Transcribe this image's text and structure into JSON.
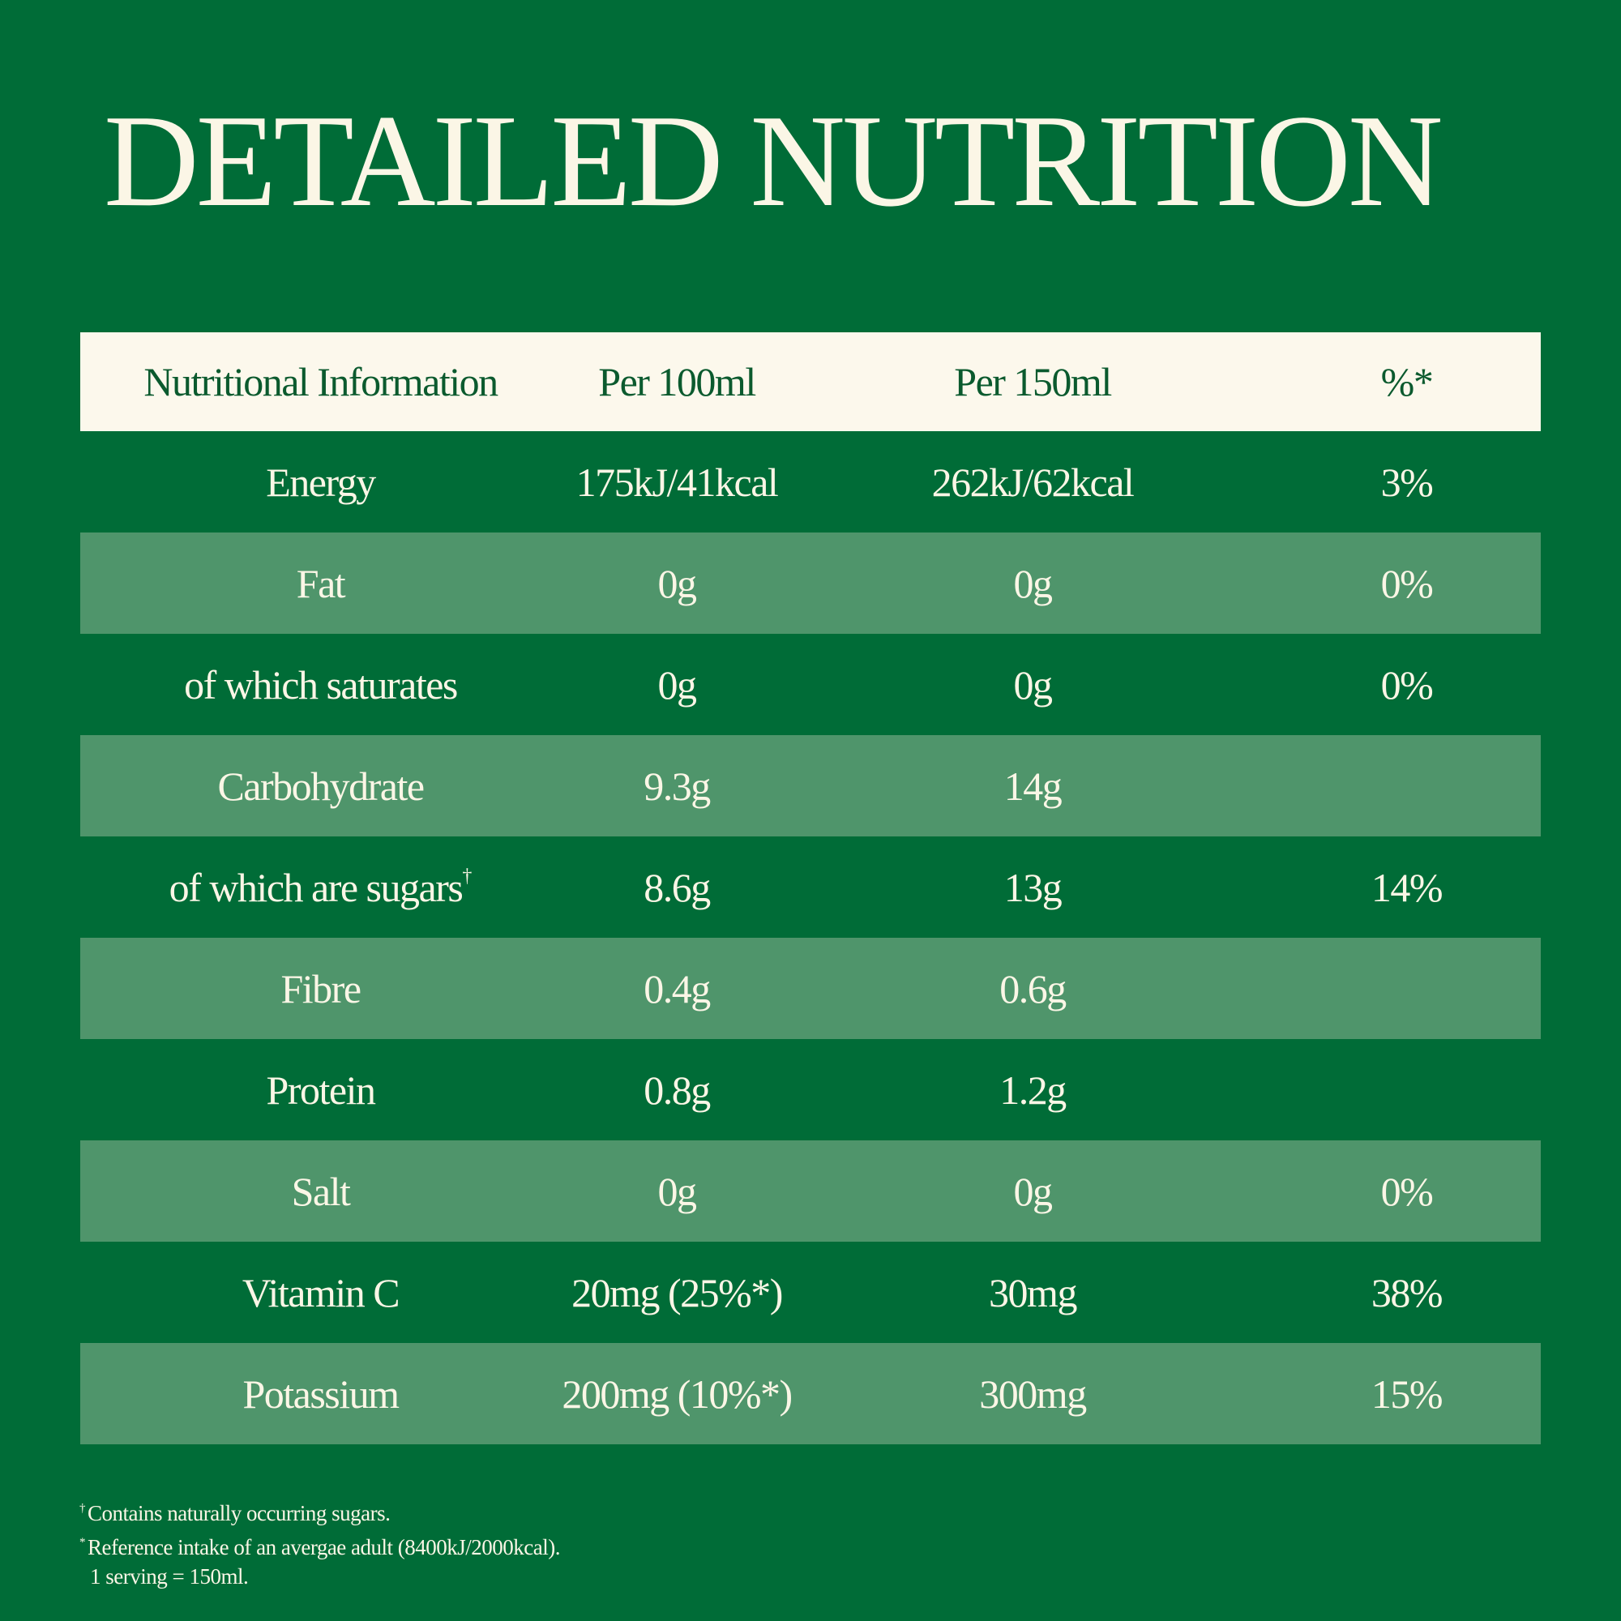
{
  "title": "DETAILED NUTRITION",
  "table": {
    "headers": [
      "Nutritional Information",
      "Per 100ml",
      "Per 150ml",
      "%*"
    ],
    "rows": [
      {
        "name": "Energy",
        "per100": "175kJ/41kcal",
        "per150": "262kJ/62kcal",
        "ri": "3%"
      },
      {
        "name": "Fat",
        "per100": "0g",
        "per150": "0g",
        "ri": "0%"
      },
      {
        "name": "of which saturates",
        "per100": "0g",
        "per150": "0g",
        "ri": "0%"
      },
      {
        "name": "Carbohydrate",
        "per100": "9.3g",
        "per150": "14g",
        "ri": ""
      },
      {
        "name": "of which are sugars",
        "name_mark": "†",
        "per100": "8.6g",
        "per150": "13g",
        "ri": "14%"
      },
      {
        "name": "Fibre",
        "per100": "0.4g",
        "per150": "0.6g",
        "ri": ""
      },
      {
        "name": "Protein",
        "per100": "0.8g",
        "per150": "1.2g",
        "ri": ""
      },
      {
        "name": "Salt",
        "per100": "0g",
        "per150": "0g",
        "ri": "0%"
      },
      {
        "name": "Vitamin C",
        "per100": "20mg (25%*)",
        "per150": "30mg",
        "ri": "38%"
      },
      {
        "name": "Potassium",
        "per100": "200mg (10%*)",
        "per150": "300mg",
        "ri": "15%"
      }
    ]
  },
  "footnotes": {
    "sugars_mark": "†",
    "sugars_text": "Contains naturally occurring sugars.",
    "ri_mark": "*",
    "ri_text": "Reference intake of an avergae adult (8400kJ/2000kcal).",
    "serving_text": "1 serving = 150ml."
  },
  "colors": {
    "background": "#006c37",
    "stripe": "#4f956b",
    "header_background": "#fcf8ec",
    "header_text": "#0b5a2e",
    "text": "#fbf6e6"
  }
}
